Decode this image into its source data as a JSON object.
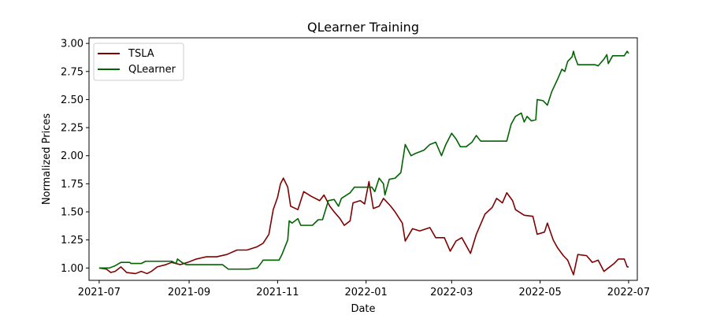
{
  "chart_data": {
    "type": "line",
    "title": "QLearner Training",
    "xlabel": "Date",
    "ylabel": "Normalized Prices",
    "xlim": [
      "2021-06-24",
      "2022-07-07"
    ],
    "ylim": [
      0.89,
      3.05
    ],
    "x_ticks": [
      "2021-07",
      "2021-09",
      "2021-11",
      "2022-01",
      "2022-03",
      "2022-05",
      "2022-07"
    ],
    "x_tick_dates": [
      "2021-07-01",
      "2021-09-01",
      "2021-11-01",
      "2022-01-01",
      "2022-03-01",
      "2022-05-01",
      "2022-07-01"
    ],
    "y_ticks": [
      1.0,
      1.25,
      1.5,
      1.75,
      2.0,
      2.25,
      2.5,
      2.75,
      3.0
    ],
    "y_tick_labels": [
      "1.00",
      "1.25",
      "1.50",
      "1.75",
      "2.00",
      "2.25",
      "2.50",
      "2.75",
      "3.00"
    ],
    "grid": false,
    "legend_position": "top-left",
    "series": [
      {
        "name": "TSLA",
        "color": "#800000",
        "points": [
          [
            "2021-07-01",
            1.0
          ],
          [
            "2021-07-06",
            0.99
          ],
          [
            "2021-07-09",
            0.96
          ],
          [
            "2021-07-12",
            0.97
          ],
          [
            "2021-07-16",
            1.01
          ],
          [
            "2021-07-20",
            0.96
          ],
          [
            "2021-07-26",
            0.95
          ],
          [
            "2021-07-30",
            0.97
          ],
          [
            "2021-08-03",
            0.95
          ],
          [
            "2021-08-06",
            0.97
          ],
          [
            "2021-08-10",
            1.01
          ],
          [
            "2021-08-16",
            1.03
          ],
          [
            "2021-08-20",
            1.05
          ],
          [
            "2021-08-26",
            1.03
          ],
          [
            "2021-08-31",
            1.05
          ],
          [
            "2021-09-06",
            1.08
          ],
          [
            "2021-09-13",
            1.1
          ],
          [
            "2021-09-20",
            1.1
          ],
          [
            "2021-09-27",
            1.12
          ],
          [
            "2021-10-04",
            1.16
          ],
          [
            "2021-10-11",
            1.16
          ],
          [
            "2021-10-18",
            1.19
          ],
          [
            "2021-10-22",
            1.22
          ],
          [
            "2021-10-26",
            1.3
          ],
          [
            "2021-10-29",
            1.52
          ],
          [
            "2021-11-01",
            1.63
          ],
          [
            "2021-11-03",
            1.75
          ],
          [
            "2021-11-05",
            1.8
          ],
          [
            "2021-11-08",
            1.72
          ],
          [
            "2021-11-10",
            1.55
          ],
          [
            "2021-11-15",
            1.52
          ],
          [
            "2021-11-19",
            1.68
          ],
          [
            "2021-11-24",
            1.64
          ],
          [
            "2021-11-30",
            1.6
          ],
          [
            "2021-12-03",
            1.65
          ],
          [
            "2021-12-07",
            1.55
          ],
          [
            "2021-12-10",
            1.5
          ],
          [
            "2021-12-14",
            1.44
          ],
          [
            "2021-12-17",
            1.38
          ],
          [
            "2021-12-21",
            1.42
          ],
          [
            "2021-12-23",
            1.58
          ],
          [
            "2021-12-28",
            1.6
          ],
          [
            "2021-12-31",
            1.57
          ],
          [
            "2022-01-03",
            1.77
          ],
          [
            "2022-01-06",
            1.53
          ],
          [
            "2022-01-10",
            1.55
          ],
          [
            "2022-01-13",
            1.62
          ],
          [
            "2022-01-18",
            1.55
          ],
          [
            "2022-01-21",
            1.5
          ],
          [
            "2022-01-26",
            1.4
          ],
          [
            "2022-01-28",
            1.24
          ],
          [
            "2022-02-02",
            1.35
          ],
          [
            "2022-02-07",
            1.33
          ],
          [
            "2022-02-14",
            1.36
          ],
          [
            "2022-02-18",
            1.27
          ],
          [
            "2022-02-24",
            1.27
          ],
          [
            "2022-02-28",
            1.15
          ],
          [
            "2022-03-04",
            1.24
          ],
          [
            "2022-03-08",
            1.27
          ],
          [
            "2022-03-14",
            1.13
          ],
          [
            "2022-03-18",
            1.3
          ],
          [
            "2022-03-24",
            1.48
          ],
          [
            "2022-03-29",
            1.54
          ],
          [
            "2022-04-01",
            1.62
          ],
          [
            "2022-04-05",
            1.58
          ],
          [
            "2022-04-08",
            1.67
          ],
          [
            "2022-04-12",
            1.6
          ],
          [
            "2022-04-14",
            1.52
          ],
          [
            "2022-04-20",
            1.47
          ],
          [
            "2022-04-26",
            1.46
          ],
          [
            "2022-04-29",
            1.3
          ],
          [
            "2022-05-04",
            1.32
          ],
          [
            "2022-05-06",
            1.4
          ],
          [
            "2022-05-10",
            1.25
          ],
          [
            "2022-05-13",
            1.18
          ],
          [
            "2022-05-17",
            1.11
          ],
          [
            "2022-05-20",
            1.07
          ],
          [
            "2022-05-24",
            0.94
          ],
          [
            "2022-05-27",
            1.12
          ],
          [
            "2022-06-02",
            1.11
          ],
          [
            "2022-06-06",
            1.05
          ],
          [
            "2022-06-10",
            1.07
          ],
          [
            "2022-06-14",
            0.97
          ],
          [
            "2022-06-17",
            1.0
          ],
          [
            "2022-06-21",
            1.04
          ],
          [
            "2022-06-24",
            1.08
          ],
          [
            "2022-06-28",
            1.08
          ],
          [
            "2022-06-30",
            1.01
          ],
          [
            "2022-07-01",
            1.01
          ]
        ]
      },
      {
        "name": "QLearner",
        "color": "#006400",
        "points": [
          [
            "2021-07-01",
            1.0
          ],
          [
            "2021-07-08",
            1.0
          ],
          [
            "2021-07-12",
            1.02
          ],
          [
            "2021-07-16",
            1.05
          ],
          [
            "2021-07-22",
            1.05
          ],
          [
            "2021-07-23",
            1.04
          ],
          [
            "2021-07-30",
            1.04
          ],
          [
            "2021-08-02",
            1.06
          ],
          [
            "2021-08-20",
            1.06
          ],
          [
            "2021-08-23",
            1.04
          ],
          [
            "2021-08-24",
            1.08
          ],
          [
            "2021-08-27",
            1.05
          ],
          [
            "2021-08-30",
            1.03
          ],
          [
            "2021-09-24",
            1.03
          ],
          [
            "2021-09-28",
            0.99
          ],
          [
            "2021-10-12",
            0.99
          ],
          [
            "2021-10-18",
            1.0
          ],
          [
            "2021-10-21",
            1.05
          ],
          [
            "2021-10-22",
            1.07
          ],
          [
            "2021-11-02",
            1.07
          ],
          [
            "2021-11-04",
            1.12
          ],
          [
            "2021-11-08",
            1.25
          ],
          [
            "2021-11-09",
            1.42
          ],
          [
            "2021-11-11",
            1.4
          ],
          [
            "2021-11-15",
            1.44
          ],
          [
            "2021-11-17",
            1.38
          ],
          [
            "2021-11-25",
            1.38
          ],
          [
            "2021-11-29",
            1.43
          ],
          [
            "2021-12-02",
            1.43
          ],
          [
            "2021-12-06",
            1.6
          ],
          [
            "2021-12-10",
            1.61
          ],
          [
            "2021-12-13",
            1.55
          ],
          [
            "2021-12-15",
            1.62
          ],
          [
            "2021-12-21",
            1.67
          ],
          [
            "2021-12-24",
            1.72
          ],
          [
            "2022-01-05",
            1.72
          ],
          [
            "2022-01-07",
            1.68
          ],
          [
            "2022-01-10",
            1.8
          ],
          [
            "2022-01-13",
            1.75
          ],
          [
            "2022-01-14",
            1.65
          ],
          [
            "2022-01-17",
            1.79
          ],
          [
            "2022-01-21",
            1.8
          ],
          [
            "2022-01-25",
            1.85
          ],
          [
            "2022-01-28",
            2.1
          ],
          [
            "2022-02-01",
            2.0
          ],
          [
            "2022-02-04",
            2.02
          ],
          [
            "2022-02-10",
            2.05
          ],
          [
            "2022-02-14",
            2.1
          ],
          [
            "2022-02-18",
            2.12
          ],
          [
            "2022-02-22",
            2.0
          ],
          [
            "2022-02-25",
            2.1
          ],
          [
            "2022-03-01",
            2.2
          ],
          [
            "2022-03-04",
            2.15
          ],
          [
            "2022-03-07",
            2.08
          ],
          [
            "2022-03-11",
            2.08
          ],
          [
            "2022-03-15",
            2.12
          ],
          [
            "2022-03-18",
            2.18
          ],
          [
            "2022-03-21",
            2.13
          ],
          [
            "2022-04-08",
            2.13
          ],
          [
            "2022-04-11",
            2.28
          ],
          [
            "2022-04-14",
            2.35
          ],
          [
            "2022-04-18",
            2.38
          ],
          [
            "2022-04-20",
            2.3
          ],
          [
            "2022-04-22",
            2.35
          ],
          [
            "2022-04-25",
            2.31
          ],
          [
            "2022-04-28",
            2.32
          ],
          [
            "2022-04-29",
            2.5
          ],
          [
            "2022-05-03",
            2.49
          ],
          [
            "2022-05-06",
            2.45
          ],
          [
            "2022-05-09",
            2.57
          ],
          [
            "2022-05-13",
            2.68
          ],
          [
            "2022-05-16",
            2.77
          ],
          [
            "2022-05-18",
            2.75
          ],
          [
            "2022-05-20",
            2.84
          ],
          [
            "2022-05-23",
            2.88
          ],
          [
            "2022-05-24",
            2.93
          ],
          [
            "2022-05-25",
            2.88
          ],
          [
            "2022-05-27",
            2.81
          ],
          [
            "2022-06-08",
            2.81
          ],
          [
            "2022-06-10",
            2.8
          ],
          [
            "2022-06-14",
            2.86
          ],
          [
            "2022-06-16",
            2.9
          ],
          [
            "2022-06-17",
            2.82
          ],
          [
            "2022-06-20",
            2.89
          ],
          [
            "2022-06-28",
            2.89
          ],
          [
            "2022-06-30",
            2.93
          ],
          [
            "2022-07-01",
            2.91
          ]
        ]
      }
    ]
  }
}
